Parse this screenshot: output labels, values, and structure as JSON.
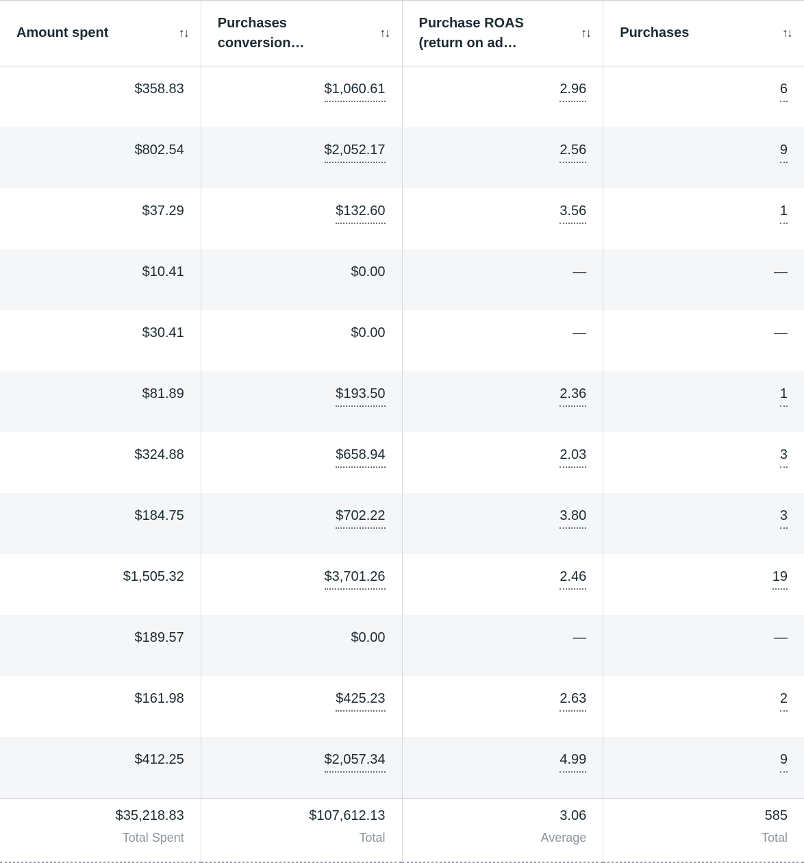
{
  "icons": {
    "sort": "↑↓"
  },
  "colors": {
    "header_text": "#1c2b33",
    "cell_text": "#1c2b33",
    "row_alt_bg": "#f5f6f7",
    "border": "#ced0d4",
    "footer_label": "#8d949e",
    "dotted_underline": "#6a6f76"
  },
  "table": {
    "columns": [
      {
        "id": "amount_spent",
        "label": "Amount spent"
      },
      {
        "id": "conversion_value",
        "label": "Purchases conversion…"
      },
      {
        "id": "roas",
        "label": "Purchase ROAS (return on ad…"
      },
      {
        "id": "purchases",
        "label": "Purchases"
      }
    ],
    "rows": [
      {
        "cells": [
          {
            "text": "$358.83",
            "underline": false
          },
          {
            "text": "$1,060.61",
            "underline": true
          },
          {
            "text": "2.96",
            "underline": true
          },
          {
            "text": "6",
            "underline": true
          }
        ]
      },
      {
        "cells": [
          {
            "text": "$802.54",
            "underline": false
          },
          {
            "text": "$2,052.17",
            "underline": true
          },
          {
            "text": "2.56",
            "underline": true
          },
          {
            "text": "9",
            "underline": true
          }
        ]
      },
      {
        "cells": [
          {
            "text": "$37.29",
            "underline": false
          },
          {
            "text": "$132.60",
            "underline": true
          },
          {
            "text": "3.56",
            "underline": true
          },
          {
            "text": "1",
            "underline": true
          }
        ]
      },
      {
        "cells": [
          {
            "text": "$10.41",
            "underline": false
          },
          {
            "text": "$0.00",
            "underline": false
          },
          {
            "text": "—",
            "underline": false
          },
          {
            "text": "—",
            "underline": false
          }
        ]
      },
      {
        "cells": [
          {
            "text": "$30.41",
            "underline": false
          },
          {
            "text": "$0.00",
            "underline": false
          },
          {
            "text": "—",
            "underline": false
          },
          {
            "text": "—",
            "underline": false
          }
        ]
      },
      {
        "cells": [
          {
            "text": "$81.89",
            "underline": false
          },
          {
            "text": "$193.50",
            "underline": true
          },
          {
            "text": "2.36",
            "underline": true
          },
          {
            "text": "1",
            "underline": true
          }
        ]
      },
      {
        "cells": [
          {
            "text": "$324.88",
            "underline": false
          },
          {
            "text": "$658.94",
            "underline": true
          },
          {
            "text": "2.03",
            "underline": true
          },
          {
            "text": "3",
            "underline": true
          }
        ]
      },
      {
        "cells": [
          {
            "text": "$184.75",
            "underline": false
          },
          {
            "text": "$702.22",
            "underline": true
          },
          {
            "text": "3.80",
            "underline": true
          },
          {
            "text": "3",
            "underline": true
          }
        ]
      },
      {
        "cells": [
          {
            "text": "$1,505.32",
            "underline": false
          },
          {
            "text": "$3,701.26",
            "underline": true
          },
          {
            "text": "2.46",
            "underline": true
          },
          {
            "text": "19",
            "underline": true
          }
        ]
      },
      {
        "cells": [
          {
            "text": "$189.57",
            "underline": false
          },
          {
            "text": "$0.00",
            "underline": false
          },
          {
            "text": "—",
            "underline": false
          },
          {
            "text": "—",
            "underline": false
          }
        ]
      },
      {
        "cells": [
          {
            "text": "$161.98",
            "underline": false
          },
          {
            "text": "$425.23",
            "underline": true
          },
          {
            "text": "2.63",
            "underline": true
          },
          {
            "text": "2",
            "underline": true
          }
        ]
      },
      {
        "cells": [
          {
            "text": "$412.25",
            "underline": false
          },
          {
            "text": "$2,057.34",
            "underline": true
          },
          {
            "text": "4.99",
            "underline": true
          },
          {
            "text": "9",
            "underline": true
          }
        ]
      }
    ],
    "footer": {
      "cells": [
        {
          "value": "$35,218.83",
          "label": "Total Spent"
        },
        {
          "value": "$107,612.13",
          "label": "Total"
        },
        {
          "value": "3.06",
          "label": "Average"
        },
        {
          "value": "585",
          "label": "Total"
        }
      ]
    }
  }
}
